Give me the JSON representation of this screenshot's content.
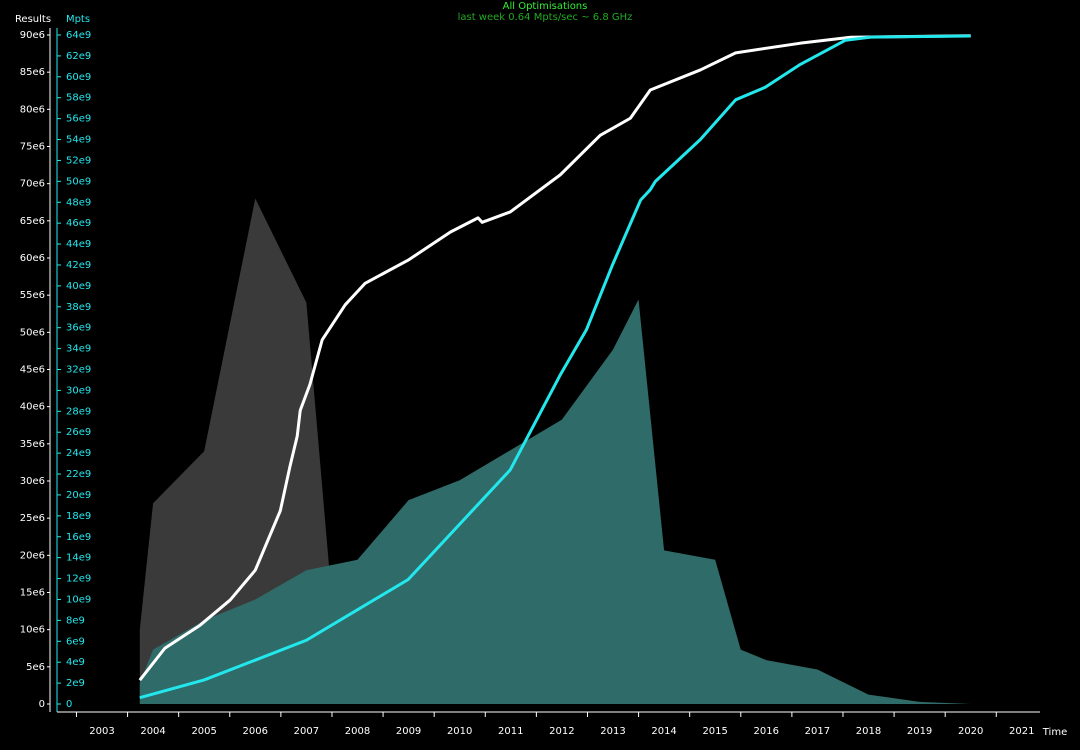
{
  "chart_data": {
    "type": "line",
    "title": "All Optimisations",
    "subtitle": "last week 0.64 Mpts/sec ~ 6.8 GHz",
    "y_label": "Results",
    "y2_label": "Mpts",
    "x_label": "Time",
    "xlim": [
      2002.12,
      2021.65
    ],
    "xticks": [
      2003,
      2004,
      2005,
      2006,
      2007,
      2008,
      2009,
      2010,
      2011,
      2012,
      2013,
      2014,
      2015,
      2016,
      2017,
      2018,
      2019,
      2020,
      2021
    ],
    "ylim": [
      0,
      90000000
    ],
    "yticks": [
      0,
      {
        "value": 5000000,
        "label": "5e6"
      },
      {
        "value": 10000000,
        "label": "10e6"
      },
      {
        "value": 15000000,
        "label": "15e6"
      },
      {
        "value": 20000000,
        "label": "20e6"
      },
      {
        "value": 25000000,
        "label": "25e6"
      },
      {
        "value": 30000000,
        "label": "30e6"
      },
      {
        "value": 35000000,
        "label": "35e6"
      },
      {
        "value": 40000000,
        "label": "40e6"
      },
      {
        "value": 45000000,
        "label": "45e6"
      },
      {
        "value": 50000000,
        "label": "50e6"
      },
      {
        "value": 55000000,
        "label": "55e6"
      },
      {
        "value": 60000000,
        "label": "60e6"
      },
      {
        "value": 65000000,
        "label": "65e6"
      },
      {
        "value": 70000000,
        "label": "70e6"
      },
      {
        "value": 75000000,
        "label": "75e6"
      },
      {
        "value": 80000000,
        "label": "80e6"
      },
      {
        "value": 85000000,
        "label": "85e6"
      },
      {
        "value": 90000000,
        "label": "90e6"
      }
    ],
    "y2lim": [
      0,
      64000000000
    ],
    "y2ticks": [
      0,
      {
        "value": 2000000000,
        "label": "2e9"
      },
      {
        "value": 4000000000,
        "label": "4e9"
      },
      {
        "value": 6000000000,
        "label": "6e9"
      },
      {
        "value": 8000000000,
        "label": "8e9"
      },
      {
        "value": 10000000000,
        "label": "10e9"
      },
      {
        "value": 12000000000,
        "label": "12e9"
      },
      {
        "value": 14000000000,
        "label": "14e9"
      },
      {
        "value": 16000000000,
        "label": "16e9"
      },
      {
        "value": 18000000000,
        "label": "18e9"
      },
      {
        "value": 20000000000,
        "label": "20e9"
      },
      {
        "value": 22000000000,
        "label": "22e9"
      },
      {
        "value": 24000000000,
        "label": "24e9"
      },
      {
        "value": 26000000000,
        "label": "26e9"
      },
      {
        "value": 28000000000,
        "label": "28e9"
      },
      {
        "value": 30000000000,
        "label": "30e9"
      },
      {
        "value": 32000000000,
        "label": "32e9"
      },
      {
        "value": 34000000000,
        "label": "34e9"
      },
      {
        "value": 36000000000,
        "label": "36e9"
      },
      {
        "value": 38000000000,
        "label": "38e9"
      },
      {
        "value": 40000000000,
        "label": "40e9"
      },
      {
        "value": 42000000000,
        "label": "42e9"
      },
      {
        "value": 44000000000,
        "label": "44e9"
      },
      {
        "value": 46000000000,
        "label": "46e9"
      },
      {
        "value": 48000000000,
        "label": "48e9"
      },
      {
        "value": 50000000000,
        "label": "50e9"
      },
      {
        "value": 52000000000,
        "label": "52e9"
      },
      {
        "value": 54000000000,
        "label": "54e9"
      },
      {
        "value": 56000000000,
        "label": "56e9"
      },
      {
        "value": 58000000000,
        "label": "58e9"
      },
      {
        "value": 60000000000,
        "label": "60e9"
      },
      {
        "value": 62000000000,
        "label": "62e9"
      },
      {
        "value": 64000000000,
        "label": "64e9"
      }
    ],
    "areas": [
      {
        "color": "#3a3a3a",
        "axis": "y",
        "x": [
          2003.74,
          2004.0,
          2005.0,
          2006.0,
          2007.0,
          2007.5,
          2008.0
        ],
        "values": [
          10000000,
          27000000,
          34000000,
          68000000,
          54000000,
          14000000,
          0
        ]
      },
      {
        "color": "#2f6b68",
        "axis": "y2",
        "x": [
          2003.74,
          2004.0,
          2005.0,
          2006.0,
          2007.0,
          2008.0,
          2009.0,
          2010.0,
          2011.0,
          2012.0,
          2013.0,
          2013.5,
          2014.0,
          2015.0,
          2015.5,
          2016.0,
          2017.0,
          2018.0,
          2019.0,
          2020.0
        ],
        "values": [
          2000000000,
          5200000000,
          8000000000,
          10000000000,
          12800000000,
          13800000000,
          19500000000,
          21400000000,
          24300000000,
          27200000000,
          33900000000,
          38700000000,
          14700000000,
          13800000000,
          5200000000,
          4200000000,
          3300000000,
          900000000,
          200000000,
          0
        ]
      }
    ],
    "series": [
      {
        "color": "#ffffff",
        "axis": "y",
        "x": [
          2003.74,
          2004.23,
          2004.92,
          2005.51,
          2006.0,
          2006.49,
          2006.68,
          2006.82,
          2006.88,
          2007.07,
          2007.31,
          2007.76,
          2008.15,
          2008.99,
          2009.82,
          2010.36,
          2010.44,
          2010.99,
          2011.97,
          2012.75,
          2013.34,
          2013.73,
          2014.71,
          2015.4,
          2016.67,
          2017.65,
          2020.0
        ],
        "values": [
          3200000,
          7500000,
          10600000,
          14000000,
          18000000,
          26000000,
          32000000,
          36000000,
          39500000,
          43000000,
          49000000,
          53700000,
          56600000,
          59700000,
          63500000,
          65400000,
          64800000,
          66200000,
          71200000,
          76500000,
          78800000,
          82600000,
          85300000,
          87600000,
          88900000,
          89700000,
          89900000
        ]
      },
      {
        "color": "#22e8ee",
        "axis": "y2",
        "x": [
          2003.74,
          2005.0,
          2007.0,
          2008.99,
          2010.99,
          2011.97,
          2012.48,
          2012.99,
          2013.54,
          2013.73,
          2013.83,
          2014.71,
          2015.4,
          2015.98,
          2016.67,
          2017.55,
          2018.04,
          2020.0
        ],
        "values": [
          600000000,
          2300000000,
          6100000000,
          11900000000,
          22400000000,
          31500000000,
          35800000000,
          42000000000,
          48200000000,
          49200000000,
          50000000000,
          54000000000,
          57800000000,
          59000000000,
          61200000000,
          63500000000,
          63800000000,
          63900000000
        ]
      }
    ]
  }
}
